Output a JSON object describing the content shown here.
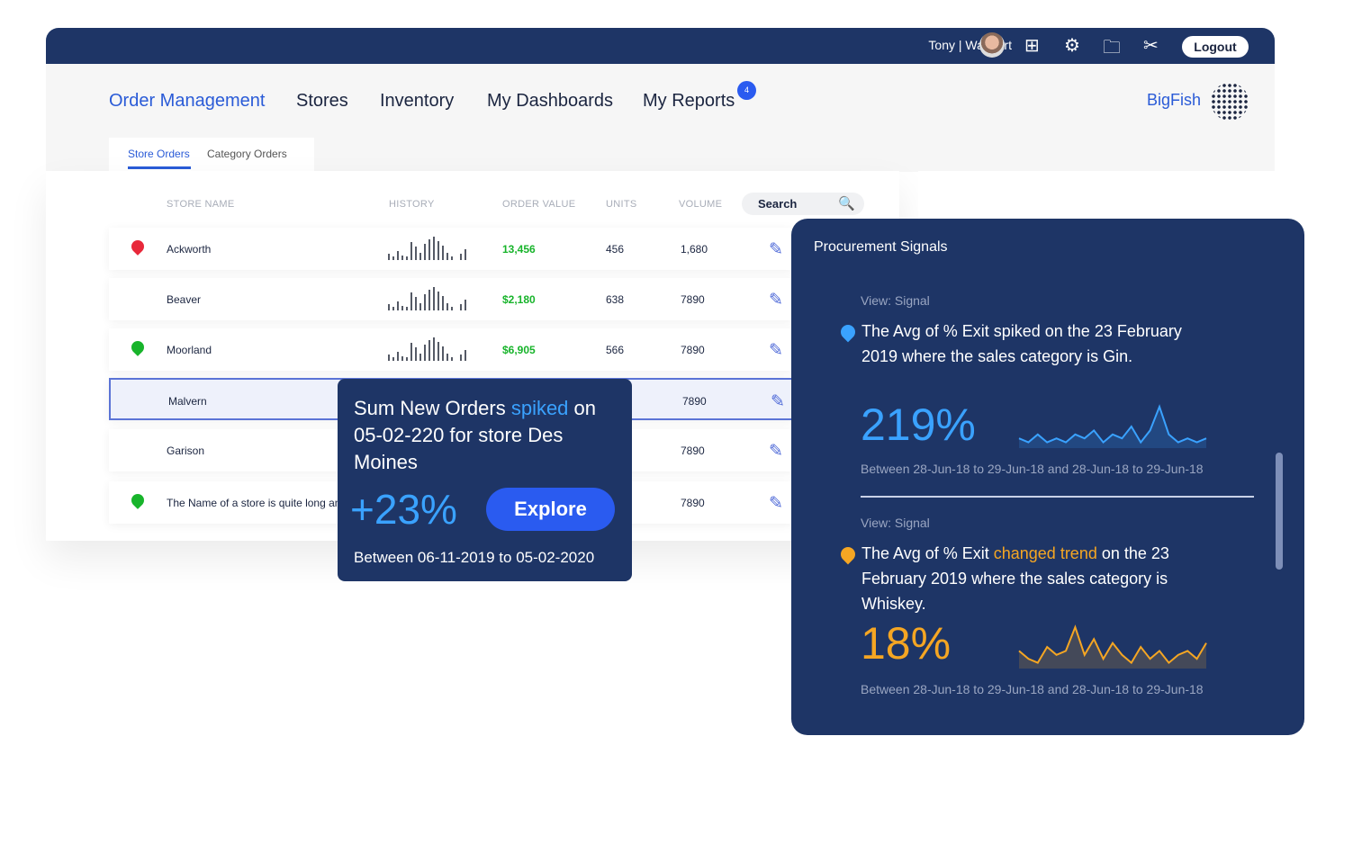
{
  "header": {
    "user": "Tony | Walmart",
    "logout": "Logout",
    "icons": [
      "avatar",
      "grid-icon",
      "gear-icon",
      "folder-icon",
      "tools-icon"
    ]
  },
  "nav": {
    "items": [
      "Order Management",
      "Stores",
      "Inventory",
      "My Dashboards",
      "My Reports"
    ],
    "active": "Order Management",
    "reports_badge": "4",
    "brand": "BigFish"
  },
  "tabs": [
    "Store Orders",
    "Category Orders"
  ],
  "table": {
    "headers": [
      "STORE NAME",
      "HISTORY",
      "ORDER VALUE",
      "UNITS",
      "VOLUME"
    ],
    "search_label": "Search",
    "history": [
      3,
      1,
      5,
      2,
      1,
      11,
      8,
      4,
      10,
      13,
      15,
      12,
      9,
      4,
      1,
      0,
      3,
      6
    ],
    "rows": [
      {
        "name": "Ackworth",
        "value": "13,456",
        "units": "456",
        "volume": "1,680",
        "pin": "#e8283a"
      },
      {
        "name": "Beaver",
        "value": "$2,180",
        "units": "638",
        "volume": "7890",
        "pin": ""
      },
      {
        "name": "Moorland",
        "value": "$6,905",
        "units": "566",
        "volume": "7890",
        "pin": "#18b42b"
      },
      {
        "name": "Malvern",
        "value": "",
        "units": "",
        "volume": "7890",
        "pin": ""
      },
      {
        "name": "Garison",
        "value": "",
        "units": "",
        "volume": "7890",
        "pin": ""
      },
      {
        "name": "The Name of a store is quite long and",
        "value": "",
        "units": "",
        "volume": "7890",
        "pin": "#18b42b"
      }
    ]
  },
  "popup": {
    "text_a": "Sum New Orders ",
    "text_hl": "spiked",
    "text_b": " on 05-02-220 for store Des Moines",
    "pct": "+23%",
    "button": "Explore",
    "range": "Between 06-11-2019 to 05-02-2020"
  },
  "signals": {
    "title": "Procurement Signals",
    "items": [
      {
        "view": "View: Signal",
        "text_a": "The Avg of % Exit spiked on the 23 February 2019 where the sales category is Gin.",
        "text_hl": "",
        "text_b": "",
        "pct": "219%",
        "range": "Between 28-Jun-18 to 29-Jun-18 and 28-Jun-18 to 29-Jun-18",
        "color": "#3aa2ff",
        "spark": [
          2,
          1,
          3,
          1,
          2,
          1,
          3,
          2,
          4,
          1,
          3,
          2,
          5,
          1,
          4,
          10,
          3,
          1,
          2,
          1,
          2
        ]
      },
      {
        "view": "View: Signal",
        "text_a": "The Avg of % Exit ",
        "text_hl": "changed trend",
        "text_b": "  on the 23 February 2019 where the sales category is Whiskey.",
        "pct": "18%",
        "range": "Between 28-Jun-18 to 29-Jun-18 and 28-Jun-18 to 29-Jun-18",
        "color": "#f5a623",
        "spark": [
          4,
          2,
          1,
          5,
          3,
          4,
          10,
          3,
          7,
          2,
          6,
          3,
          1,
          5,
          2,
          4,
          1,
          3,
          4,
          2,
          6
        ]
      }
    ]
  }
}
